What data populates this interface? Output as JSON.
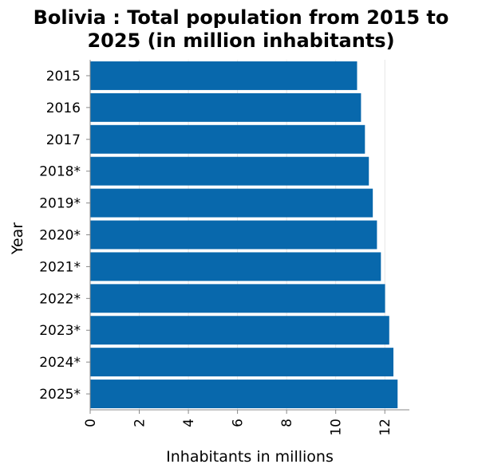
{
  "chart_data": {
    "type": "bar",
    "orientation": "horizontal",
    "title_lines": [
      "Bolivia : Total population from 2015 to",
      "2025 (in million inhabitants)"
    ],
    "categories": [
      "2015",
      "2016",
      "2017",
      "2018*",
      "2019*",
      "2020*",
      "2021*",
      "2022*",
      "2023*",
      "2024*",
      "2025*"
    ],
    "values": [
      10.87,
      11.03,
      11.19,
      11.35,
      11.51,
      11.68,
      11.84,
      12.01,
      12.18,
      12.35,
      12.52
    ],
    "xlabel": "Inhabitants in millions",
    "ylabel": "Year",
    "xlim": [
      0,
      13
    ],
    "xticks": [
      0,
      2,
      4,
      6,
      8,
      10,
      12
    ],
    "bar_color": "#0868ac",
    "grid": true,
    "grid_color": "#e6e6e6",
    "axis_color": "#888888"
  }
}
